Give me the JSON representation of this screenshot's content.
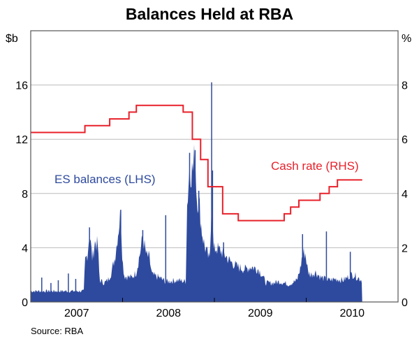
{
  "chart_data": {
    "type": "area+line",
    "title": "Balances Held at RBA",
    "left_axis": {
      "unit": "$b",
      "ylim": [
        0,
        20
      ],
      "ticks": [
        0,
        4,
        8,
        12,
        16
      ]
    },
    "right_axis": {
      "unit": "%",
      "ylim": [
        0,
        10
      ],
      "ticks": [
        0,
        2,
        4,
        6,
        8
      ]
    },
    "x_axis": {
      "range": [
        2007.0,
        2011.0
      ],
      "tick_labels": [
        "2007",
        "2008",
        "2009",
        "2010"
      ]
    },
    "grid": true,
    "source": "Source: RBA",
    "colors": {
      "es": "#2E4A9E",
      "cash": "#E8202A"
    },
    "series": [
      {
        "name": "ES balances (LHS)",
        "axis": "left",
        "type": "area",
        "points": [
          [
            2007.0,
            0.8
          ],
          [
            2007.2,
            0.8
          ],
          [
            2007.45,
            0.8
          ],
          [
            2007.58,
            0.8
          ],
          [
            2007.59,
            3.0
          ],
          [
            2007.62,
            3.6
          ],
          [
            2007.64,
            5.2
          ],
          [
            2007.67,
            3.2
          ],
          [
            2007.7,
            4.4
          ],
          [
            2007.73,
            4.2
          ],
          [
            2007.75,
            1.6
          ],
          [
            2007.8,
            1.4
          ],
          [
            2007.84,
            1.6
          ],
          [
            2007.88,
            2.2
          ],
          [
            2007.92,
            3.4
          ],
          [
            2007.96,
            5.6
          ],
          [
            2007.98,
            6.6
          ],
          [
            2008.0,
            3.0
          ],
          [
            2008.02,
            1.9
          ],
          [
            2008.1,
            1.8
          ],
          [
            2008.15,
            2.2
          ],
          [
            2008.19,
            3.6
          ],
          [
            2008.22,
            4.8
          ],
          [
            2008.26,
            3.4
          ],
          [
            2008.29,
            3.3
          ],
          [
            2008.32,
            2.0
          ],
          [
            2008.4,
            1.8
          ],
          [
            2008.47,
            1.5
          ],
          [
            2008.6,
            1.6
          ],
          [
            2008.69,
            1.5
          ],
          [
            2008.7,
            6.8
          ],
          [
            2008.73,
            10.0
          ],
          [
            2008.76,
            9.6
          ],
          [
            2008.79,
            10.8
          ],
          [
            2008.81,
            7.6
          ],
          [
            2008.83,
            7.6
          ],
          [
            2008.86,
            5.4
          ],
          [
            2008.89,
            4.2
          ],
          [
            2008.93,
            3.4
          ],
          [
            2008.95,
            3.0
          ],
          [
            2008.97,
            8.0
          ],
          [
            2008.99,
            3.8
          ],
          [
            2009.02,
            4.0
          ],
          [
            2009.06,
            3.8
          ],
          [
            2009.1,
            3.6
          ],
          [
            2009.17,
            3.0
          ],
          [
            2009.25,
            2.6
          ],
          [
            2009.33,
            2.4
          ],
          [
            2009.4,
            2.6
          ],
          [
            2009.48,
            2.4
          ],
          [
            2009.52,
            2.0
          ],
          [
            2009.56,
            1.4
          ],
          [
            2009.64,
            1.4
          ],
          [
            2009.71,
            1.5
          ],
          [
            2009.81,
            1.3
          ],
          [
            2009.9,
            1.6
          ],
          [
            2009.94,
            2.6
          ],
          [
            2009.96,
            3.6
          ],
          [
            2009.99,
            3.6
          ],
          [
            2010.02,
            2.2
          ],
          [
            2010.05,
            2.0
          ],
          [
            2010.1,
            2.2
          ],
          [
            2010.16,
            1.8
          ],
          [
            2010.25,
            1.6
          ],
          [
            2010.32,
            1.7
          ],
          [
            2010.4,
            1.6
          ],
          [
            2010.45,
            1.8
          ],
          [
            2010.48,
            2.0
          ],
          [
            2010.52,
            2.0
          ],
          [
            2010.56,
            1.8
          ],
          [
            2010.61,
            1.6
          ]
        ]
      },
      {
        "name": "ES balances spikes",
        "axis": "left",
        "type": "spikes",
        "points": [
          [
            2007.12,
            1.8
          ],
          [
            2007.22,
            1.4
          ],
          [
            2007.3,
            1.6
          ],
          [
            2007.41,
            2.1
          ],
          [
            2007.49,
            1.7
          ],
          [
            2007.64,
            5.5
          ],
          [
            2007.98,
            6.8
          ],
          [
            2008.22,
            5.3
          ],
          [
            2008.47,
            6.4
          ],
          [
            2008.73,
            11.0
          ],
          [
            2008.79,
            11.2
          ],
          [
            2008.83,
            8.2
          ],
          [
            2008.97,
            16.2
          ],
          [
            2008.98,
            9.7
          ],
          [
            2009.1,
            4.4
          ],
          [
            2009.96,
            5.0
          ],
          [
            2010.22,
            5.2
          ],
          [
            2010.48,
            3.7
          ]
        ]
      },
      {
        "name": "Cash rate (RHS)",
        "axis": "right",
        "type": "step",
        "points": [
          [
            2007.0,
            6.25
          ],
          [
            2007.59,
            6.5
          ],
          [
            2007.86,
            6.75
          ],
          [
            2008.07,
            7.0
          ],
          [
            2008.15,
            7.25
          ],
          [
            2008.66,
            7.0
          ],
          [
            2008.76,
            6.0
          ],
          [
            2008.85,
            5.25
          ],
          [
            2008.93,
            4.25
          ],
          [
            2009.09,
            3.25
          ],
          [
            2009.26,
            3.0
          ],
          [
            2009.76,
            3.25
          ],
          [
            2009.83,
            3.5
          ],
          [
            2009.92,
            3.75
          ],
          [
            2010.15,
            4.0
          ],
          [
            2010.25,
            4.25
          ],
          [
            2010.34,
            4.5
          ],
          [
            2010.61,
            4.5
          ]
        ]
      }
    ],
    "annotations": [
      "ES balances (LHS)",
      "Cash rate (RHS)"
    ]
  }
}
